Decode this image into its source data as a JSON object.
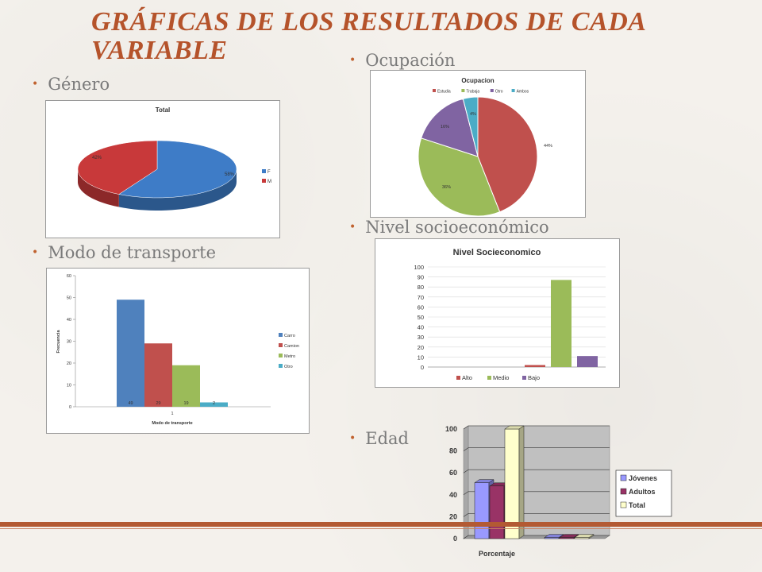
{
  "slide": {
    "title": "GRÁFICAS DE LOS RESULTADOS DE CADA VARIABLE",
    "bullets": {
      "genero": "Género",
      "ocupacion": "Ocupación",
      "transporte": "Modo de transporte",
      "nivel": "Nivel socioeconómico",
      "edad": "Edad"
    }
  },
  "chart_data": [
    {
      "id": "genero",
      "type": "pie",
      "title": "Total",
      "categories": [
        "F",
        "M"
      ],
      "values": [
        58,
        42
      ],
      "labels": [
        "58%",
        "42%"
      ],
      "colors": [
        "#3e7cc7",
        "#c8393a"
      ],
      "legend": "right"
    },
    {
      "id": "ocupacion",
      "type": "pie",
      "title": "Ocupacion",
      "categories": [
        "Estudia",
        "Trabaja",
        "Otro",
        "Ambos"
      ],
      "values": [
        44,
        36,
        16,
        4
      ],
      "labels": [
        "44%",
        "36%",
        "16%",
        "4%"
      ],
      "colors": [
        "#c0504d",
        "#9bbb59",
        "#8064a2",
        "#4bacc6"
      ],
      "legend": "top"
    },
    {
      "id": "transporte",
      "type": "bar",
      "title": "",
      "xlabel": "Modo de transporte",
      "ylabel": "Frecuencia",
      "categories": [
        "1"
      ],
      "series": [
        {
          "name": "Carro",
          "values": [
            49
          ],
          "color": "#4f81bd"
        },
        {
          "name": "Camion",
          "values": [
            29
          ],
          "color": "#c0504d"
        },
        {
          "name": "Metro",
          "values": [
            19
          ],
          "color": "#9bbb59"
        },
        {
          "name": "Otro",
          "values": [
            2
          ],
          "color": "#4bacc6"
        }
      ],
      "data_labels": [
        "49",
        "29",
        "19",
        "2"
      ],
      "yticks": [
        "0",
        "10",
        "20",
        "30",
        "40",
        "50",
        "60"
      ],
      "ylim": [
        0,
        60
      ],
      "legend": "right"
    },
    {
      "id": "nivel",
      "type": "bar",
      "title": "Nivel Socieconomico",
      "categories": [
        "Alto",
        "Medio",
        "Bajo"
      ],
      "values": [
        2,
        87,
        11
      ],
      "colors": [
        "#c0504d",
        "#9bbb59",
        "#8064a2"
      ],
      "yticks": [
        "0",
        "10",
        "20",
        "30",
        "40",
        "50",
        "60",
        "70",
        "80",
        "90",
        "100"
      ],
      "ylim": [
        0,
        100
      ],
      "legend": "bottom"
    },
    {
      "id": "edad",
      "type": "bar",
      "title": "",
      "categories": [
        "Porcentaje",
        ""
      ],
      "series": [
        {
          "name": "Jóvenes",
          "values": [
            51,
            1
          ],
          "color": "#9999ff"
        },
        {
          "name": "Adultos",
          "values": [
            48,
            1
          ],
          "color": "#993366"
        },
        {
          "name": "Total",
          "values": [
            100,
            1
          ],
          "color": "#ffffcc"
        }
      ],
      "yticks": [
        "0",
        "20",
        "40",
        "60",
        "80",
        "100"
      ],
      "ylim": [
        0,
        100
      ],
      "legend": "right"
    }
  ]
}
